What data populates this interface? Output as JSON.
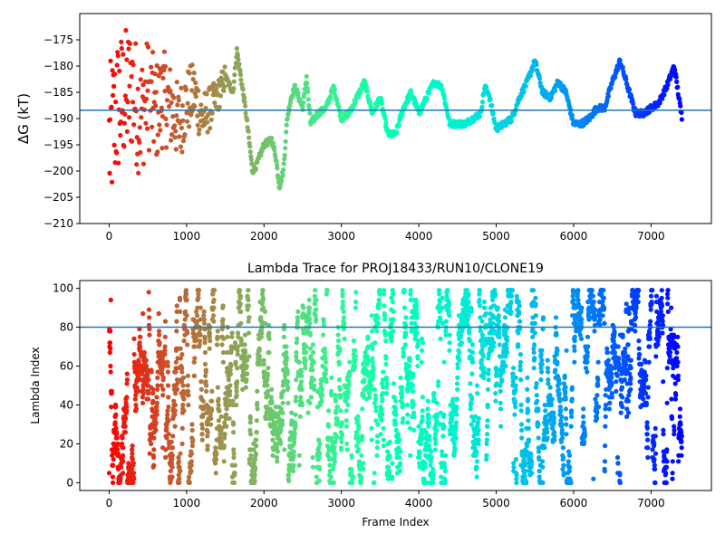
{
  "chart_data": [
    {
      "type": "scatter",
      "title": "",
      "xlabel": "",
      "ylabel_symbol": "ΔG",
      "ylabel_unit": " (kT)",
      "xlim": [
        -380,
        7780
      ],
      "ylim": [
        -210,
        -170
      ],
      "xticks": [
        0,
        1000,
        2000,
        3000,
        4000,
        5000,
        6000,
        7000
      ],
      "yticks": [
        -210,
        -205,
        -200,
        -195,
        -190,
        -185,
        -180,
        -175
      ],
      "hline": {
        "y": -188.4,
        "color": "#1f77b4"
      },
      "colormap": "rainbow (reversed): red at frame 0, violet at frame 7400",
      "n_frames": 7400,
      "trace": {
        "type": "line",
        "x": [
          0,
          100,
          200,
          300,
          400,
          500,
          600,
          700,
          800,
          900,
          1000,
          1100,
          1200,
          1300,
          1400,
          1500,
          1600,
          1650,
          1700,
          1750,
          1800,
          1850,
          1900,
          2000,
          2100,
          2150,
          2200,
          2250,
          2300,
          2350,
          2400,
          2500,
          2550,
          2600,
          2700,
          2800,
          2900,
          3000,
          3100,
          3200,
          3300,
          3400,
          3500,
          3600,
          3700,
          3800,
          3900,
          4000,
          4100,
          4200,
          4300,
          4400,
          4500,
          4600,
          4700,
          4800,
          4850,
          4900,
          5000,
          5100,
          5200,
          5300,
          5400,
          5500,
          5600,
          5700,
          5800,
          5900,
          6000,
          6100,
          6200,
          6300,
          6400,
          6500,
          6600,
          6700,
          6800,
          6900,
          7000,
          7100,
          7200,
          7300,
          7400
        ],
        "y": [
          -195,
          -188,
          -186,
          -184,
          -190,
          -185,
          -189,
          -186,
          -188,
          -191,
          -187,
          -185,
          -190,
          -188,
          -186,
          -182,
          -185,
          -177,
          -182,
          -187,
          -193,
          -200,
          -199,
          -195,
          -194,
          -197,
          -203,
          -200,
          -190,
          -186,
          -184,
          -188,
          -182,
          -191,
          -189,
          -188,
          -184,
          -190,
          -189,
          -186,
          -183,
          -189,
          -186,
          -193,
          -193,
          -188,
          -185,
          -189,
          -186,
          -183,
          -184,
          -191,
          -191,
          -191,
          -190,
          -189,
          -184,
          -185,
          -192,
          -191,
          -190,
          -186,
          -183,
          -179,
          -185,
          -186,
          -183,
          -185,
          -191,
          -191,
          -190,
          -188,
          -188,
          -183,
          -179,
          -184,
          -189,
          -189,
          -188,
          -187,
          -184,
          -180,
          -190
        ]
      }
    },
    {
      "type": "scatter",
      "title": "Lambda Trace for PROJ18433/RUN10/CLONE19",
      "xlabel": "Frame Index",
      "ylabel": "Lambda Index",
      "xlim": [
        -380,
        7780
      ],
      "ylim": [
        -4,
        104
      ],
      "xticks": [
        0,
        1000,
        2000,
        3000,
        4000,
        5000,
        6000,
        7000
      ],
      "yticks": [
        0,
        20,
        40,
        60,
        80,
        100
      ],
      "hline": {
        "y": 80,
        "color": "#1f77b4"
      },
      "colormap": "rainbow (reversed): red at frame 0, violet at frame 7400",
      "n_frames": 7400,
      "value_range": [
        0,
        99
      ],
      "description_of_distribution": "dense vertical columns of lambda values spanning 0-99 across all frames"
    }
  ]
}
